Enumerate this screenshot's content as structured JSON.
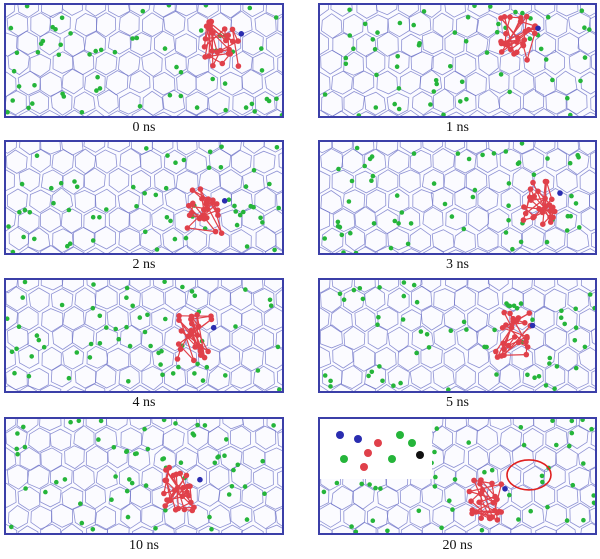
{
  "figure": {
    "panels": [
      {
        "label": "0 ns"
      },
      {
        "label": "1 ns"
      },
      {
        "label": "2 ns"
      },
      {
        "label": "3 ns"
      },
      {
        "label": "4 ns"
      },
      {
        "label": "5 ns"
      },
      {
        "label": "10 ns"
      },
      {
        "label": "20 ns"
      }
    ],
    "colors": {
      "frame": "#3b3fa8",
      "lattice": "#6a6fc6",
      "green_sphere": "#25b53a",
      "red_molecule": "#e0404a",
      "blue_atom": "#2a2db0",
      "highlight_circle": "#e02020"
    }
  }
}
